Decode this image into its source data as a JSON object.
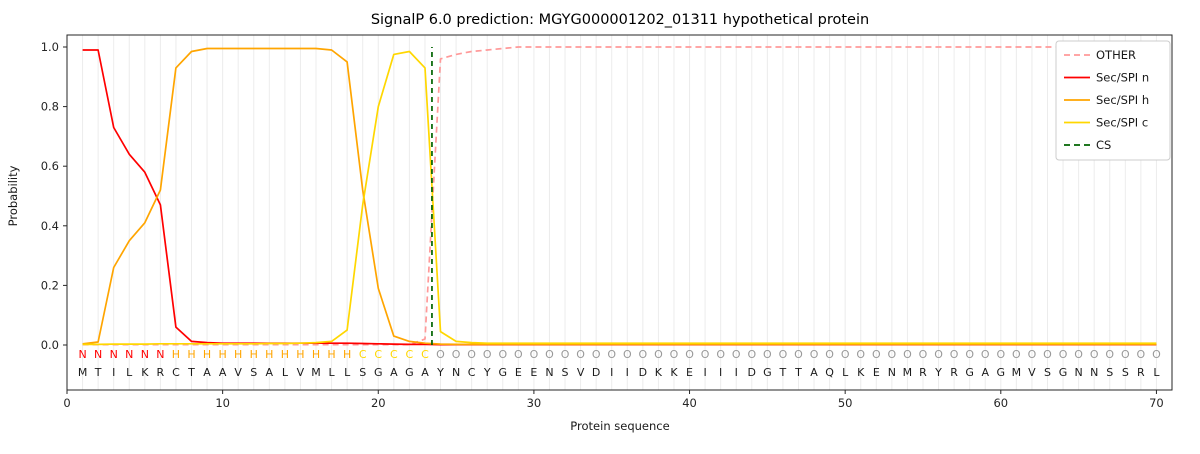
{
  "chart_data": {
    "type": "line",
    "title": "SignalP 6.0 prediction: MGYG000001202_01311 hypothetical protein",
    "xlabel": "Protein sequence",
    "ylabel": "Probability",
    "xlim": [
      0,
      71
    ],
    "ylim": [
      -0.15,
      1.04
    ],
    "x_ticks": [
      0,
      10,
      20,
      30,
      40,
      50,
      60,
      70
    ],
    "y_ticks": [
      0.0,
      0.2,
      0.4,
      0.6,
      0.8,
      1.0
    ],
    "grid": "vertical-gridline-per-residue",
    "legend_position": "upper right",
    "x": [
      1,
      2,
      3,
      4,
      5,
      6,
      7,
      8,
      9,
      10,
      11,
      12,
      13,
      14,
      15,
      16,
      17,
      18,
      19,
      20,
      21,
      22,
      23,
      24,
      25,
      26,
      27,
      28,
      29,
      30,
      31,
      32,
      33,
      34,
      35,
      36,
      37,
      38,
      39,
      40,
      41,
      42,
      43,
      44,
      45,
      46,
      47,
      48,
      49,
      50,
      51,
      52,
      53,
      54,
      55,
      56,
      57,
      58,
      59,
      60,
      61,
      62,
      63,
      64,
      65,
      66,
      67,
      68,
      69,
      70
    ],
    "series": [
      {
        "name": "OTHER",
        "color": "#ff9999",
        "dash": true,
        "values": [
          0.001,
          0.001,
          0.001,
          0.001,
          0.001,
          0.001,
          0.001,
          0.001,
          0.001,
          0.001,
          0.001,
          0.001,
          0.001,
          0.001,
          0.001,
          0.001,
          0.001,
          0.001,
          0.001,
          0.001,
          0.001,
          0.001,
          0.02,
          0.96,
          0.975,
          0.985,
          0.99,
          0.995,
          1.0,
          1.0,
          1.0,
          1.0,
          1.0,
          1.0,
          1.0,
          1.0,
          1.0,
          1.0,
          1.0,
          1.0,
          1.0,
          1.0,
          1.0,
          1.0,
          1.0,
          1.0,
          1.0,
          1.0,
          1.0,
          1.0,
          1.0,
          1.0,
          1.0,
          1.0,
          1.0,
          1.0,
          1.0,
          1.0,
          1.0,
          1.0,
          1.0,
          1.0,
          1.0,
          1.0,
          1.0,
          1.0,
          1.0,
          1.0,
          1.0,
          1.0
        ]
      },
      {
        "name": "Sec/SPI n",
        "color": "#ff0000",
        "dash": false,
        "values": [
          0.99,
          0.99,
          0.73,
          0.64,
          0.58,
          0.47,
          0.06,
          0.012,
          0.008,
          0.006,
          0.006,
          0.006,
          0.006,
          0.006,
          0.006,
          0.006,
          0.006,
          0.006,
          0.005,
          0.004,
          0.003,
          0.002,
          0.002,
          0.001,
          0.001,
          0.001,
          0.001,
          0.001,
          0.001,
          0.001,
          0.001,
          0.001,
          0.001,
          0.001,
          0.001,
          0.001,
          0.001,
          0.001,
          0.001,
          0.001,
          0.001,
          0.001,
          0.001,
          0.001,
          0.001,
          0.001,
          0.001,
          0.001,
          0.001,
          0.001,
          0.001,
          0.001,
          0.001,
          0.001,
          0.001,
          0.001,
          0.001,
          0.001,
          0.001,
          0.001,
          0.001,
          0.001,
          0.001,
          0.001,
          0.001,
          0.001,
          0.001,
          0.001,
          0.001,
          0.001
        ]
      },
      {
        "name": "Sec/SPI h",
        "color": "#ffa500",
        "dash": false,
        "values": [
          0.004,
          0.01,
          0.26,
          0.35,
          0.41,
          0.52,
          0.93,
          0.985,
          0.995,
          0.995,
          0.995,
          0.995,
          0.995,
          0.995,
          0.995,
          0.995,
          0.99,
          0.95,
          0.52,
          0.19,
          0.03,
          0.012,
          0.006,
          0.003,
          0.002,
          0.002,
          0.002,
          0.002,
          0.002,
          0.002,
          0.002,
          0.002,
          0.002,
          0.002,
          0.002,
          0.002,
          0.002,
          0.002,
          0.002,
          0.002,
          0.002,
          0.002,
          0.002,
          0.002,
          0.002,
          0.002,
          0.002,
          0.002,
          0.002,
          0.002,
          0.002,
          0.002,
          0.002,
          0.002,
          0.002,
          0.002,
          0.002,
          0.002,
          0.002,
          0.002,
          0.002,
          0.002,
          0.002,
          0.002,
          0.002,
          0.002,
          0.002,
          0.002,
          0.002,
          0.002
        ]
      },
      {
        "name": "Sec/SPI c",
        "color": "#ffd700",
        "dash": false,
        "values": [
          0.002,
          0.002,
          0.003,
          0.003,
          0.003,
          0.004,
          0.004,
          0.004,
          0.004,
          0.004,
          0.004,
          0.004,
          0.005,
          0.005,
          0.006,
          0.008,
          0.012,
          0.05,
          0.47,
          0.8,
          0.975,
          0.985,
          0.93,
          0.045,
          0.012,
          0.008,
          0.006,
          0.006,
          0.006,
          0.006,
          0.006,
          0.006,
          0.006,
          0.006,
          0.006,
          0.006,
          0.006,
          0.006,
          0.006,
          0.006,
          0.006,
          0.006,
          0.006,
          0.006,
          0.006,
          0.006,
          0.006,
          0.006,
          0.006,
          0.006,
          0.006,
          0.006,
          0.006,
          0.006,
          0.006,
          0.006,
          0.006,
          0.006,
          0.006,
          0.006,
          0.006,
          0.006,
          0.006,
          0.006,
          0.006,
          0.006,
          0.006,
          0.006,
          0.006,
          0.006
        ]
      }
    ],
    "cs_line": {
      "name": "CS",
      "x": 23.45,
      "color": "#006400",
      "dash": true
    },
    "legend": [
      {
        "label": "OTHER",
        "color": "#ff9999",
        "dash": true
      },
      {
        "label": "Sec/SPI n",
        "color": "#ff0000",
        "dash": false
      },
      {
        "label": "Sec/SPI h",
        "color": "#ffa500",
        "dash": false
      },
      {
        "label": "Sec/SPI c",
        "color": "#ffd700",
        "dash": false
      },
      {
        "label": "CS",
        "color": "#006400",
        "dash": true
      }
    ],
    "sequence": "MTILKRCTAAVSALVMLLSGAGAYNCYGEENSVDIIDKKEIIIDGTTAQLKENMRYRGAGMVSGNNSSRL",
    "region_labels": "NNNNNNHHHHHHHHHHHHCCCCCOOOOOOOOOOOOOOOOOOOOOOOOOOOOOOOOOOOOOOOOOOOOOOO",
    "label_colors": {
      "N": "#ff0000",
      "H": "#ffa500",
      "C": "#ffd700",
      "O": "#999999"
    },
    "sequence_color": "#1a1a1a"
  }
}
